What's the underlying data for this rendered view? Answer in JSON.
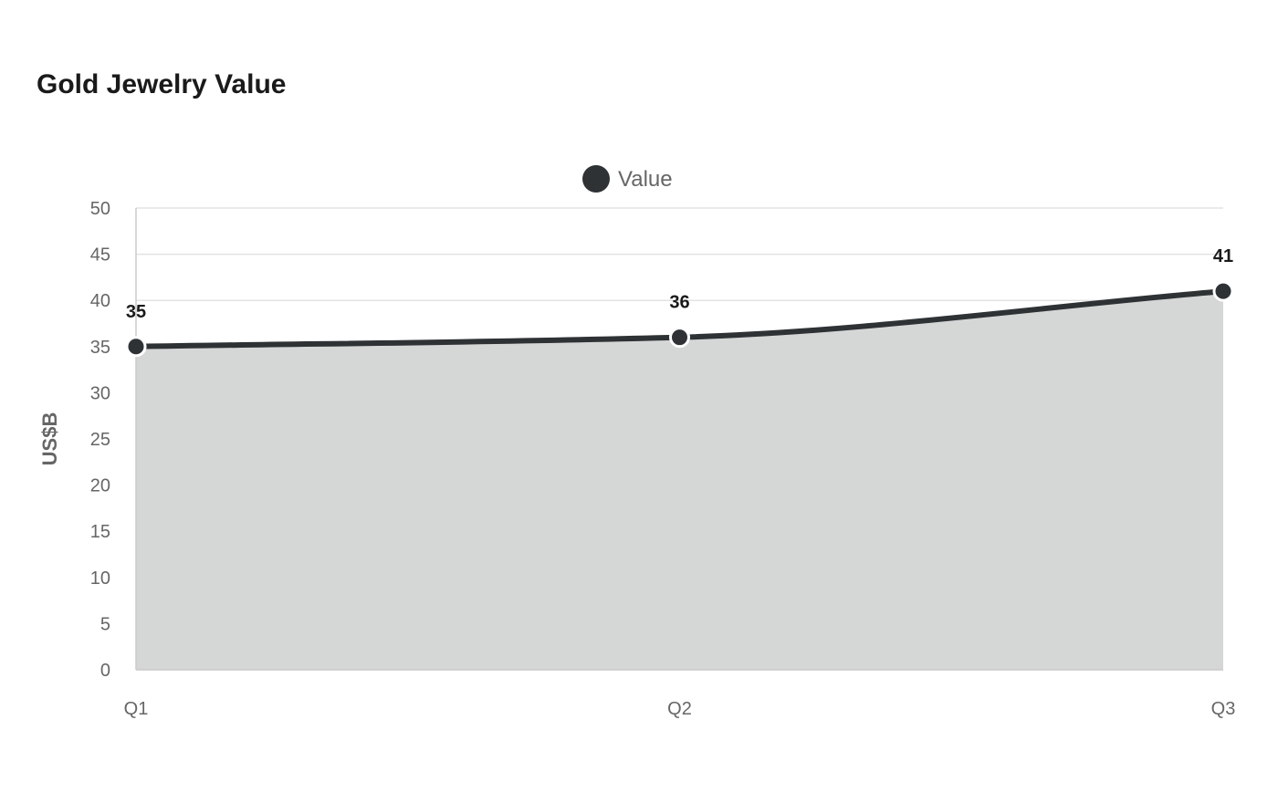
{
  "chart_data": {
    "type": "area",
    "title": "Gold Jewelry Value",
    "xlabel": "",
    "ylabel": "US$B",
    "categories": [
      "Q1",
      "Q2",
      "Q3"
    ],
    "series": [
      {
        "name": "Value",
        "values": [
          35,
          36,
          41
        ]
      }
    ],
    "ylim": [
      0,
      50
    ],
    "yticks": [
      0,
      5,
      10,
      15,
      20,
      25,
      30,
      35,
      40,
      45,
      50
    ],
    "grid": true,
    "legend_position": "top-center",
    "data_labels": true,
    "colors": {
      "line": "#2e3235",
      "fill": "#d5d6d6",
      "grid": "#e3e3e3",
      "axis": "#cccccc"
    }
  }
}
